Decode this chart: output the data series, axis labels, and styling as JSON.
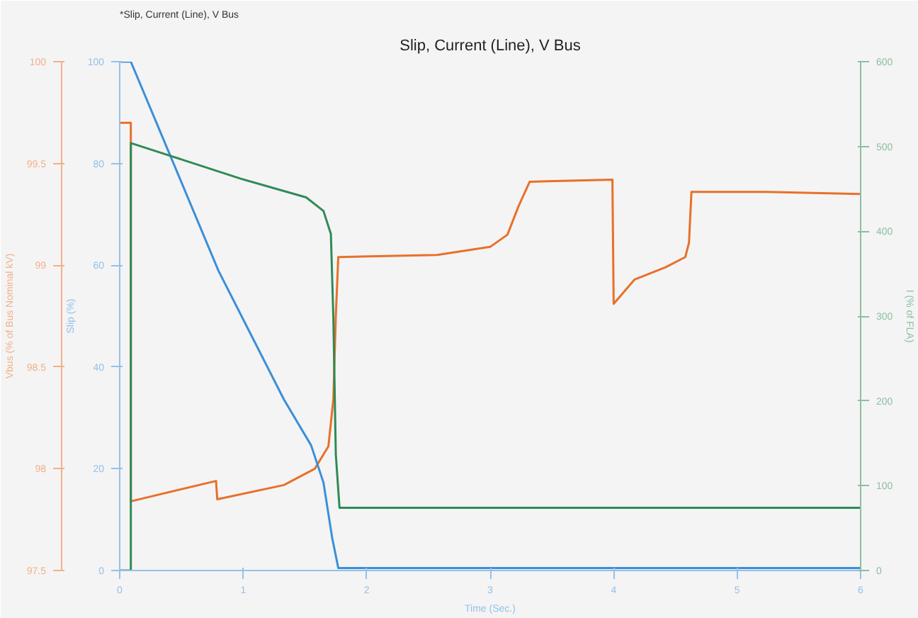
{
  "chart_data": {
    "type": "line",
    "title": "Slip, Current (Line), V Bus",
    "xlabel": "Time (Sec.)",
    "ylabel": "Vbus (% of Bus Nominal kV)",
    "y2label": "Slip (%)",
    "y3label": "I (% of FLA)",
    "annotations": [
      "*Slip, Current (Line), V Bus"
    ],
    "xlim": [
      0,
      6
    ],
    "xticks": [
      0,
      1,
      2,
      3,
      4,
      5,
      6
    ],
    "ylim": [
      97.5,
      100
    ],
    "yticks": [
      97.5,
      98,
      98.5,
      99,
      99.5,
      100
    ],
    "y2lim": [
      0,
      100
    ],
    "y2ticks": [
      0,
      20,
      40,
      60,
      80,
      100
    ],
    "y3lim": [
      0,
      600
    ],
    "y3ticks": [
      0,
      100,
      200,
      300,
      400,
      500,
      600
    ],
    "grid": false,
    "marker": "none",
    "line_style": "solid",
    "series": [
      {
        "color": "#e8702a",
        "axis": "y",
        "x": [
          0,
          0.09,
          0.09,
          0.78,
          0.79,
          1.33,
          1.58,
          1.69,
          1.73,
          1.75,
          1.77,
          2.57,
          3.0,
          3.14,
          3.23,
          3.32,
          3.99,
          4.0,
          4.17,
          4.42,
          4.58,
          4.61,
          4.63,
          5.23,
          6.0
        ],
        "values": [
          99.7,
          99.7,
          97.84,
          97.94,
          97.85,
          97.92,
          98.0,
          98.11,
          98.34,
          98.75,
          99.04,
          99.05,
          99.09,
          99.15,
          99.29,
          99.41,
          99.42,
          98.81,
          98.93,
          98.99,
          99.04,
          99.11,
          99.36,
          99.36,
          99.35
        ]
      },
      {
        "color": "#3b8fd9",
        "axis": "y2",
        "x": [
          0,
          0.09,
          0.41,
          0.8,
          1.085,
          1.33,
          1.55,
          1.65,
          1.72,
          1.77,
          6.0
        ],
        "values": [
          100,
          100,
          81.5,
          58.9,
          45.3,
          33.6,
          24.6,
          17.3,
          6.5,
          0.5,
          0.5
        ]
      },
      {
        "color": "#2e8b57",
        "axis": "y3",
        "x": [
          0,
          0.09,
          0.09,
          0.41,
          0.98,
          1.51,
          1.65,
          1.71,
          1.73,
          1.75,
          1.78,
          6.0
        ],
        "values": [
          0,
          0,
          504,
          489,
          462,
          440,
          424,
          397,
          299,
          137,
          74,
          74
        ]
      }
    ]
  }
}
